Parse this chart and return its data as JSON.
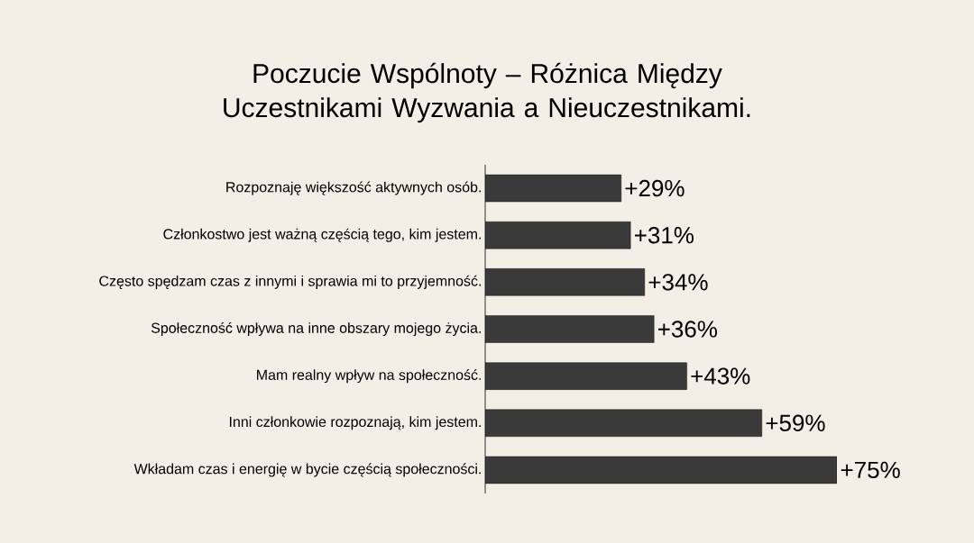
{
  "chart_data": {
    "type": "bar",
    "orientation": "horizontal",
    "title": "Poczucie Wspólnoty – Różnica Między Uczestnikami Wyzwania a Nieuczestnikami.",
    "categories": [
      "Rozpoznaję większość aktywnych osób.",
      "Członkostwo jest ważną częścią tego, kim jestem.",
      "Często spędzam czas z innymi i sprawia mi to przyjemność.",
      "Społeczność wpływa na inne obszary mojego życia.",
      "Mam realny wpływ na społeczność.",
      "Inni członkowie rozpoznają, kim jestem.",
      "Wkładam czas i energię w bycie częścią społeczności."
    ],
    "values": [
      29,
      31,
      34,
      36,
      43,
      59,
      75
    ],
    "value_labels": [
      "+29%",
      "+31%",
      "+34%",
      "+36%",
      "+43%",
      "+59%",
      "+75%"
    ],
    "color": "#3a3a3a"
  }
}
